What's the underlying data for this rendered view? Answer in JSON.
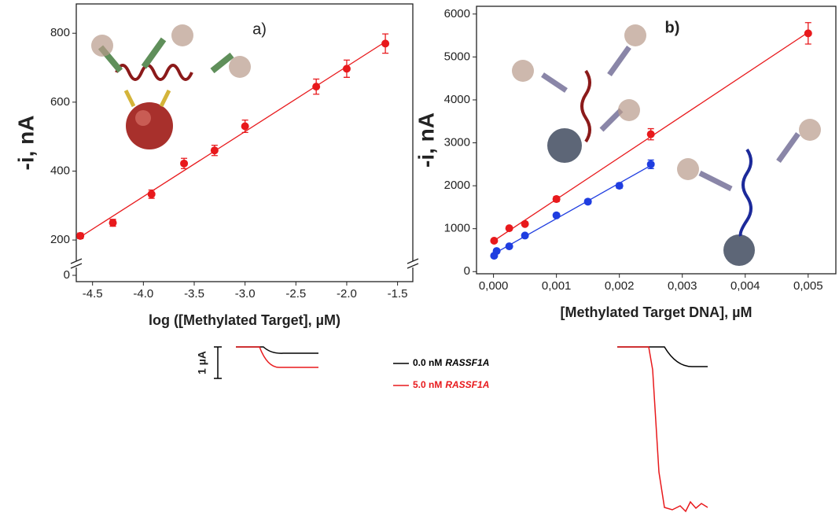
{
  "chart_data": [
    {
      "type": "scatter",
      "panel_label": "a)",
      "xlabel": "log ([Methylated Target], µM)",
      "ylabel": "-i, nA",
      "x": [
        -4.62,
        -4.3,
        -3.92,
        -3.6,
        -3.3,
        -3.0,
        -2.3,
        -2.0,
        -1.62
      ],
      "values": [
        212,
        250,
        333,
        422,
        460,
        530,
        645,
        697,
        770
      ],
      "errors": [
        8,
        10,
        12,
        15,
        15,
        18,
        22,
        25,
        28
      ],
      "color": "#e8191c",
      "fit": true,
      "xlim": [
        -4.66,
        -1.35
      ],
      "xticks": [
        -4.5,
        {
          "value": -4,
          "label": "-4.0"
        },
        -3.5,
        {
          "value": -3,
          "label": "-3.0"
        },
        -2.5,
        {
          "value": -2,
          "label": "-2.0"
        },
        -1.5
      ],
      "ylim": [
        0,
        885
      ],
      "ybreak": [
        0,
        150
      ],
      "yticks": [
        0,
        200,
        400,
        600,
        800
      ]
    },
    {
      "type": "scatter",
      "panel_label": "b)",
      "xlabel": "[Methylated Target DNA], µM",
      "ylabel": "-i, nA",
      "series": [
        {
          "color": "#e8191c",
          "x": [
            1e-05,
            0.00025,
            0.0005,
            0.001,
            0.0025,
            0.005
          ],
          "values": [
            720,
            1010,
            1110,
            1690,
            3200,
            5550
          ],
          "errors": [
            40,
            40,
            40,
            60,
            130,
            250
          ]
        },
        {
          "color": "#1f3de0",
          "x": [
            1e-05,
            5e-05,
            0.00025,
            0.0005,
            0.001,
            0.0015,
            0.002,
            0.0025
          ],
          "values": [
            370,
            480,
            590,
            840,
            1310,
            1630,
            2000,
            2500
          ],
          "errors": [
            30,
            30,
            30,
            40,
            50,
            50,
            60,
            100
          ]
        }
      ],
      "fit": true,
      "xlim": [
        -0.00027,
        0.00544
      ],
      "xticks": [
        {
          "value": 0,
          "label": "0,000"
        },
        {
          "value": 0.001,
          "label": "0,001"
        },
        {
          "value": 0.002,
          "label": "0,002"
        },
        {
          "value": 0.003,
          "label": "0,003"
        },
        {
          "value": 0.004,
          "label": "0,004"
        },
        {
          "value": 0.005,
          "label": "0,005"
        }
      ],
      "ylim": [
        -50,
        6180
      ],
      "yticks": [
        0,
        1000,
        2000,
        3000,
        4000,
        5000,
        6000
      ]
    }
  ],
  "traces": {
    "scale_bar": "1 µA",
    "legend": [
      {
        "conc": "0.0 nM",
        "gene": "RASSF1A",
        "color": "#000000"
      },
      {
        "conc": "5.0 nM",
        "gene": "RASSF1A",
        "color": "#e8191c"
      }
    ]
  }
}
